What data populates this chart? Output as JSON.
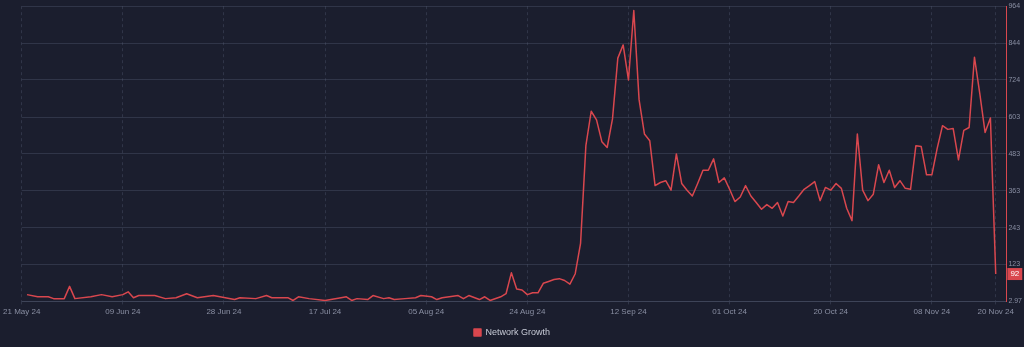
{
  "chart_data": {
    "type": "line",
    "legend": "bottom",
    "grid": true,
    "marker": "none",
    "line_style": "solid",
    "xlim": [
      "2024-05-21",
      "2024-11-22"
    ],
    "xticks": [
      {
        "value": "2024-05-21",
        "label": "21 May 24"
      },
      {
        "value": "2024-06-09",
        "label": "09 Jun 24"
      },
      {
        "value": "2024-06-28",
        "label": "28 Jun 24"
      },
      {
        "value": "2024-07-17",
        "label": "17 Jul 24"
      },
      {
        "value": "2024-08-05",
        "label": "05 Aug 24"
      },
      {
        "value": "2024-08-24",
        "label": "24 Aug 24"
      },
      {
        "value": "2024-09-12",
        "label": "12 Sep 24"
      },
      {
        "value": "2024-10-01",
        "label": "01 Oct 24"
      },
      {
        "value": "2024-10-20",
        "label": "20 Oct 24"
      },
      {
        "value": "2024-11-08",
        "label": "08 Nov 24"
      },
      {
        "value": "2024-11-20",
        "label": "20 Nov 24"
      }
    ],
    "ylim": [
      2.97,
      964
    ],
    "yticks": [
      2.97,
      123,
      243,
      363,
      483,
      603,
      724,
      844,
      964
    ],
    "annotations": [
      {
        "text": "92",
        "x": "2024-11-20",
        "y": 92
      }
    ],
    "x": [
      "2024-05-22",
      "2024-05-24",
      "2024-05-26",
      "2024-05-27",
      "2024-05-29",
      "2024-05-30",
      "2024-05-31",
      "2024-06-03",
      "2024-06-05",
      "2024-06-07",
      "2024-06-09",
      "2024-06-10",
      "2024-06-11",
      "2024-06-12",
      "2024-06-15",
      "2024-06-17",
      "2024-06-19",
      "2024-06-21",
      "2024-06-23",
      "2024-06-26",
      "2024-06-30",
      "2024-07-01",
      "2024-07-04",
      "2024-07-06",
      "2024-07-07",
      "2024-07-10",
      "2024-07-11",
      "2024-07-12",
      "2024-07-14",
      "2024-07-17",
      "2024-07-20",
      "2024-07-21",
      "2024-07-22",
      "2024-07-23",
      "2024-07-25",
      "2024-07-26",
      "2024-07-28",
      "2024-07-29",
      "2024-07-30",
      "2024-08-01",
      "2024-08-03",
      "2024-08-04",
      "2024-08-06",
      "2024-08-07",
      "2024-08-08",
      "2024-08-11",
      "2024-08-12",
      "2024-08-13",
      "2024-08-15",
      "2024-08-16",
      "2024-08-17",
      "2024-08-19",
      "2024-08-20",
      "2024-08-21",
      "2024-08-22",
      "2024-08-23",
      "2024-08-24",
      "2024-08-25",
      "2024-08-26",
      "2024-08-27",
      "2024-08-28",
      "2024-08-29",
      "2024-08-30",
      "2024-08-31",
      "2024-09-01",
      "2024-09-02",
      "2024-09-03",
      "2024-09-04",
      "2024-09-05",
      "2024-09-06",
      "2024-09-07",
      "2024-09-08",
      "2024-09-09",
      "2024-09-10",
      "2024-09-11",
      "2024-09-12",
      "2024-09-13",
      "2024-09-14",
      "2024-09-15",
      "2024-09-16",
      "2024-09-17",
      "2024-09-18",
      "2024-09-19",
      "2024-09-20",
      "2024-09-21",
      "2024-09-22",
      "2024-09-23",
      "2024-09-24",
      "2024-09-25",
      "2024-09-26",
      "2024-09-27",
      "2024-09-28",
      "2024-09-29",
      "2024-09-30",
      "2024-10-01",
      "2024-10-02",
      "2024-10-03",
      "2024-10-04",
      "2024-10-05",
      "2024-10-06",
      "2024-10-07",
      "2024-10-08",
      "2024-10-09",
      "2024-10-10",
      "2024-10-11",
      "2024-10-12",
      "2024-10-13",
      "2024-10-14",
      "2024-10-15",
      "2024-10-16",
      "2024-10-17",
      "2024-10-18",
      "2024-10-19",
      "2024-10-20",
      "2024-10-21",
      "2024-10-22",
      "2024-10-23",
      "2024-10-24",
      "2024-10-25",
      "2024-10-26",
      "2024-10-27",
      "2024-10-28",
      "2024-10-29",
      "2024-10-30",
      "2024-10-31",
      "2024-11-01",
      "2024-11-02",
      "2024-11-03",
      "2024-11-04",
      "2024-11-05",
      "2024-11-06",
      "2024-11-07",
      "2024-11-08",
      "2024-11-09",
      "2024-11-10",
      "2024-11-11",
      "2024-11-12",
      "2024-11-13",
      "2024-11-14",
      "2024-11-15",
      "2024-11-16",
      "2024-11-17",
      "2024-11-18",
      "2024-11-19",
      "2024-11-20"
    ],
    "series": [
      {
        "name": "Network Growth",
        "color": "#d9474e",
        "values": [
          25,
          18,
          18,
          12,
          12,
          52,
          12,
          18,
          25,
          18,
          25,
          34,
          15,
          22,
          22,
          12,
          15,
          28,
          15,
          22,
          9,
          15,
          12,
          22,
          15,
          15,
          6,
          18,
          12,
          6,
          15,
          18,
          6,
          12,
          9,
          22,
          12,
          15,
          9,
          12,
          15,
          22,
          18,
          9,
          15,
          22,
          12,
          22,
          9,
          18,
          6,
          18,
          28,
          96,
          43,
          40,
          25,
          31,
          31,
          62,
          68,
          74,
          77,
          71,
          59,
          93,
          192,
          510,
          622,
          594,
          523,
          504,
          597,
          795,
          838,
          724,
          950,
          659,
          548,
          526,
          380,
          390,
          396,
          365,
          483,
          387,
          365,
          346,
          387,
          430,
          430,
          467,
          390,
          405,
          368,
          328,
          343,
          380,
          346,
          325,
          303,
          318,
          306,
          325,
          281,
          328,
          325,
          346,
          368,
          380,
          393,
          331,
          374,
          365,
          387,
          371,
          306,
          266,
          548,
          365,
          331,
          352,
          448,
          390,
          430,
          374,
          396,
          371,
          368,
          510,
          507,
          415,
          415,
          501,
          575,
          563,
          566,
          464,
          560,
          569,
          798,
          680,
          553,
          600,
          92
        ]
      }
    ]
  }
}
